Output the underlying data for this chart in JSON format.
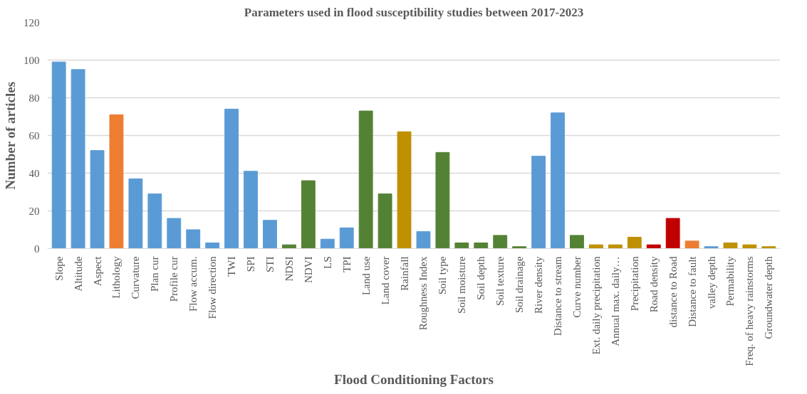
{
  "chart_data": {
    "type": "bar",
    "title": "Parameters used in flood susceptibility studies between 2017-2023",
    "xlabel": "Flood Conditioning Factors",
    "ylabel": "Number of articles",
    "categories": [
      "Slope",
      "Altitude",
      "Aspect",
      "Lithology",
      "Curvature",
      "Plan cur",
      "Profile cur",
      "Flow accum.",
      "Flow direction",
      "TWI",
      "SPI",
      "STI",
      "NDSI",
      "NDVI",
      "LS",
      "TPI",
      "Land use",
      "Land cover",
      "Rainfall",
      "Roughness Index",
      "Soil type",
      "Soil moisture",
      "Soil depth",
      "Soil texture",
      "Soil drainage",
      "River density",
      "Distance to stream",
      "Curve number",
      "Ext. daily precipitation",
      "Annual max. daily…",
      "Precipitation",
      "Road density",
      "distance to Road",
      "Distance to fault",
      "valley depth",
      "Permability",
      "Freq. of heavy rainstorms",
      "Groundwater depth"
    ],
    "values": [
      99,
      95,
      52,
      71,
      37,
      29,
      16,
      10,
      3,
      74,
      41,
      15,
      2,
      36,
      5,
      11,
      73,
      29,
      62,
      9,
      51,
      3,
      3,
      7,
      1,
      49,
      72,
      7,
      2,
      2,
      6,
      2,
      16,
      4,
      1,
      3,
      2,
      1
    ],
    "colors": [
      "#5b9bd5",
      "#5b9bd5",
      "#5b9bd5",
      "#ed7d31",
      "#5b9bd5",
      "#5b9bd5",
      "#5b9bd5",
      "#5b9bd5",
      "#5b9bd5",
      "#5b9bd5",
      "#5b9bd5",
      "#5b9bd5",
      "#548235",
      "#548235",
      "#5b9bd5",
      "#5b9bd5",
      "#548235",
      "#548235",
      "#bf9000",
      "#5b9bd5",
      "#548235",
      "#548235",
      "#548235",
      "#548235",
      "#548235",
      "#5b9bd5",
      "#5b9bd5",
      "#548235",
      "#bf9000",
      "#bf9000",
      "#bf9000",
      "#c00000",
      "#c00000",
      "#ed7d31",
      "#5b9bd5",
      "#bf9000",
      "#bf9000",
      "#bf9000"
    ],
    "ylim": [
      0,
      120
    ],
    "yticks": [
      0,
      20,
      40,
      60,
      80,
      100,
      120
    ],
    "grid": "y"
  }
}
